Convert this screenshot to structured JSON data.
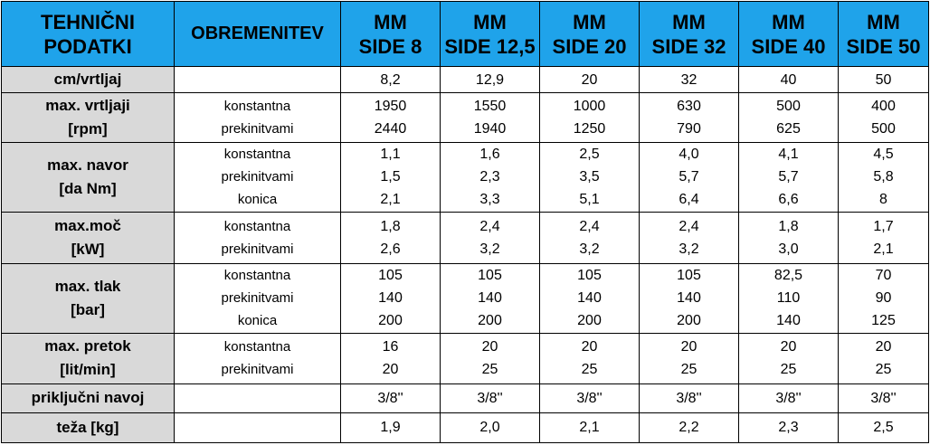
{
  "table": {
    "header": {
      "tech_data": [
        "TEHNIČNI",
        "PODATKI"
      ],
      "load": "OBREMENITEV",
      "models": [
        [
          "MM",
          "SIDE 8"
        ],
        [
          "MM",
          "SIDE 12,5"
        ],
        [
          "MM",
          "SIDE 20"
        ],
        [
          "MM",
          "SIDE 32"
        ],
        [
          "MM",
          "SIDE 40"
        ],
        [
          "MM",
          "SIDE 50"
        ]
      ]
    },
    "rows": [
      {
        "label": [
          "cm/vrtljaj"
        ],
        "loads": [],
        "values": [
          [
            "8,2"
          ],
          [
            "12,9"
          ],
          [
            "20"
          ],
          [
            "32"
          ],
          [
            "40"
          ],
          [
            "50"
          ]
        ]
      },
      {
        "label": [
          "max. vrtljaji",
          "[rpm]"
        ],
        "loads": [
          "konstantna",
          "prekinitvami"
        ],
        "values": [
          [
            "1950",
            "2440"
          ],
          [
            "1550",
            "1940"
          ],
          [
            "1000",
            "1250"
          ],
          [
            "630",
            "790"
          ],
          [
            "500",
            "625"
          ],
          [
            "400",
            "500"
          ]
        ]
      },
      {
        "label": [
          "max. navor",
          "[da Nm]"
        ],
        "loads": [
          "konstantna",
          "prekinitvami",
          "konica"
        ],
        "values": [
          [
            "1,1",
            "1,5",
            "2,1"
          ],
          [
            "1,6",
            "2,3",
            "3,3"
          ],
          [
            "2,5",
            "3,5",
            "5,1"
          ],
          [
            "4,0",
            "5,7",
            "6,4"
          ],
          [
            "4,1",
            "5,7",
            "6,6"
          ],
          [
            "4,5",
            "5,8",
            "8"
          ]
        ]
      },
      {
        "label": [
          "max.moč",
          "[kW]"
        ],
        "loads": [
          "konstantna",
          "prekinitvami"
        ],
        "values": [
          [
            "1,8",
            "2,6"
          ],
          [
            "2,4",
            "3,2"
          ],
          [
            "2,4",
            "3,2"
          ],
          [
            "2,4",
            "3,2"
          ],
          [
            "1,8",
            "3,0"
          ],
          [
            "1,7",
            "2,1"
          ]
        ]
      },
      {
        "label": [
          "max. tlak",
          "[bar]"
        ],
        "loads": [
          "konstantna",
          "prekinitvami",
          "konica"
        ],
        "values": [
          [
            "105",
            "140",
            "200"
          ],
          [
            "105",
            "140",
            "200"
          ],
          [
            "105",
            "140",
            "200"
          ],
          [
            "105",
            "140",
            "200"
          ],
          [
            "82,5",
            "110",
            "140"
          ],
          [
            "70",
            "90",
            "125"
          ]
        ]
      },
      {
        "label": [
          "max. pretok",
          "[lit/min]"
        ],
        "loads": [
          "konstantna",
          "prekinitvami"
        ],
        "values": [
          [
            "16",
            "20"
          ],
          [
            "20",
            "25"
          ],
          [
            "20",
            "25"
          ],
          [
            "20",
            "25"
          ],
          [
            "20",
            "25"
          ],
          [
            "20",
            "25"
          ]
        ]
      },
      {
        "label": [
          "priključni navoj"
        ],
        "loads": [],
        "values": [
          [
            "3/8''"
          ],
          [
            "3/8''"
          ],
          [
            "3/8''"
          ],
          [
            "3/8''"
          ],
          [
            "3/8''"
          ],
          [
            "3/8''"
          ]
        ]
      },
      {
        "label": [
          "teža [kg]"
        ],
        "loads": [],
        "values": [
          [
            "1,9"
          ],
          [
            "2,0"
          ],
          [
            "2,1"
          ],
          [
            "2,2"
          ],
          [
            "2,3"
          ],
          [
            "2,5"
          ]
        ]
      }
    ]
  }
}
